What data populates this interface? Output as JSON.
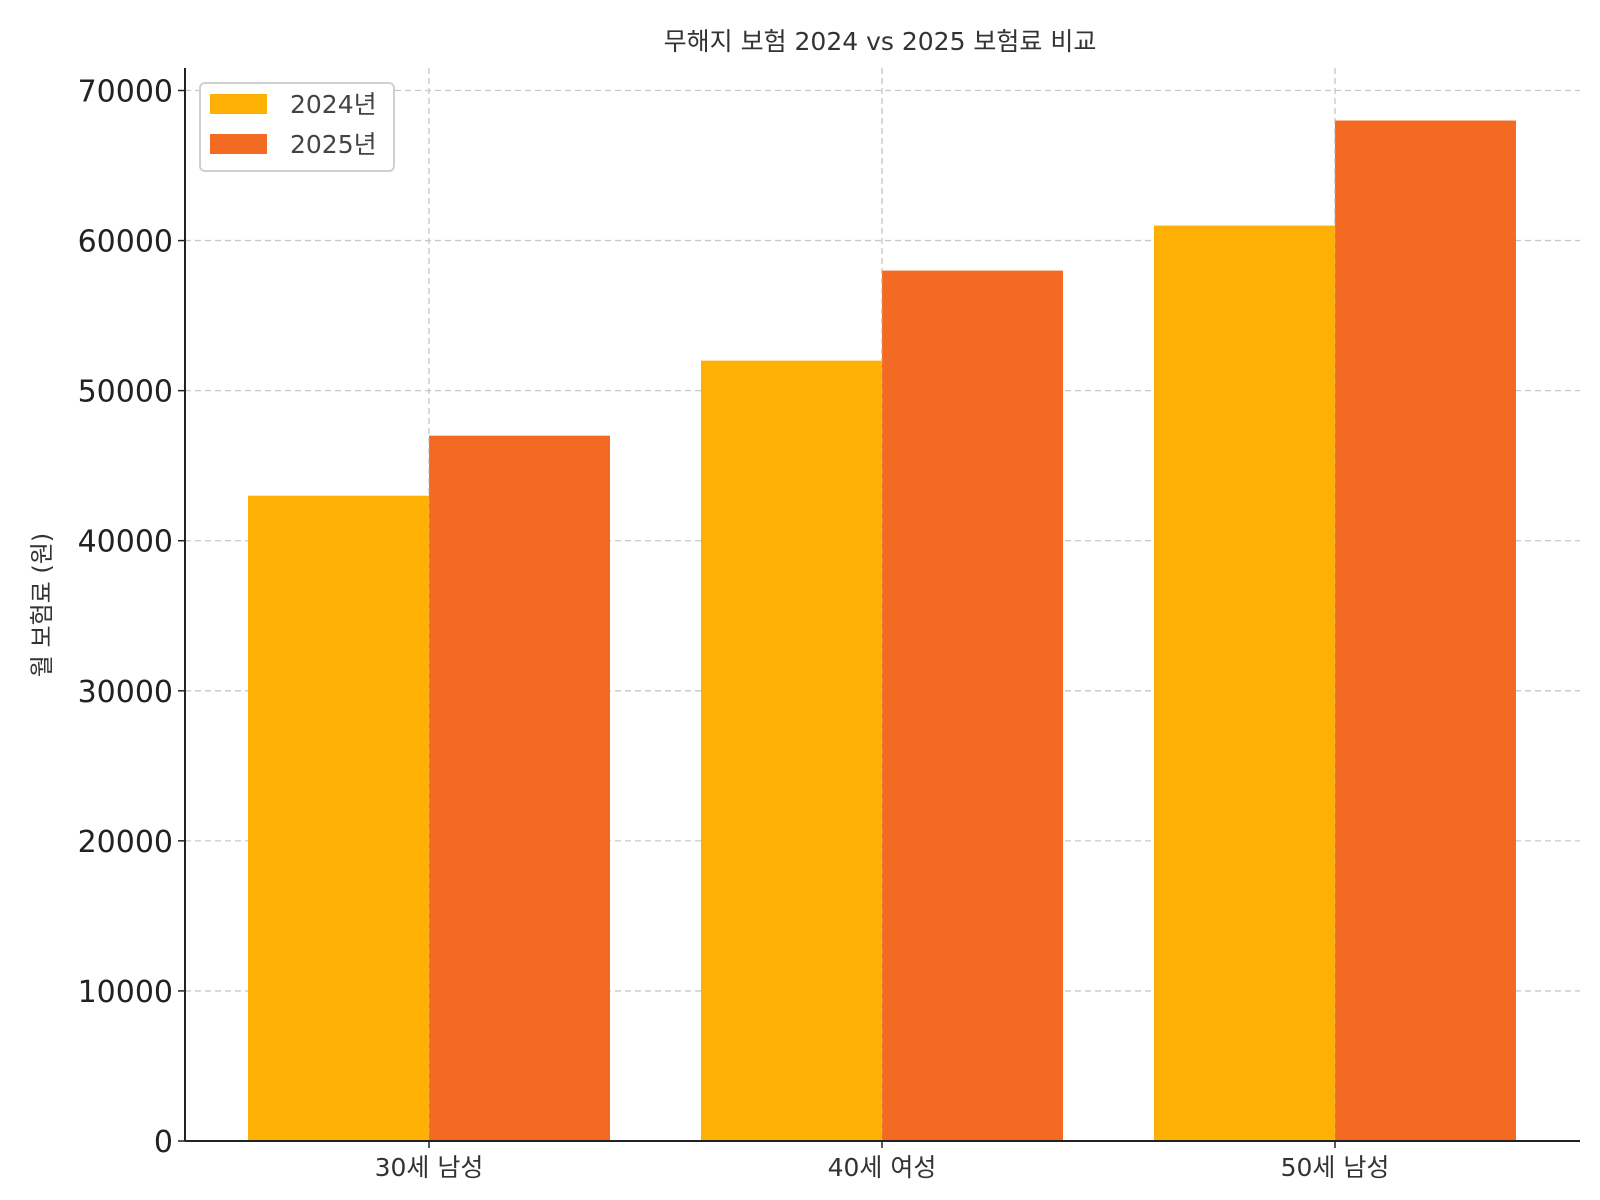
{
  "chart_data": {
    "type": "bar",
    "title": "무해지 보험 2024 vs 2025 보험료 비교",
    "xlabel": "",
    "ylabel": "월 보험료 (원)",
    "categories": [
      "30세 남성",
      "40세 여성",
      "50세 남성"
    ],
    "series": [
      {
        "name": "2024년",
        "values": [
          43000,
          52000,
          61000
        ],
        "color": "#FFB005"
      },
      {
        "name": "2025년",
        "values": [
          47000,
          58000,
          68000
        ],
        "color": "#F36A22"
      }
    ],
    "ylim": [
      0,
      71500
    ],
    "yticks": [
      0,
      10000,
      20000,
      30000,
      40000,
      50000,
      60000,
      70000
    ],
    "ytick_labels": [
      "0",
      "10000",
      "20000",
      "30000",
      "40000",
      "50000",
      "60000",
      "70000"
    ],
    "grid": true,
    "legend_position": "top-left"
  }
}
